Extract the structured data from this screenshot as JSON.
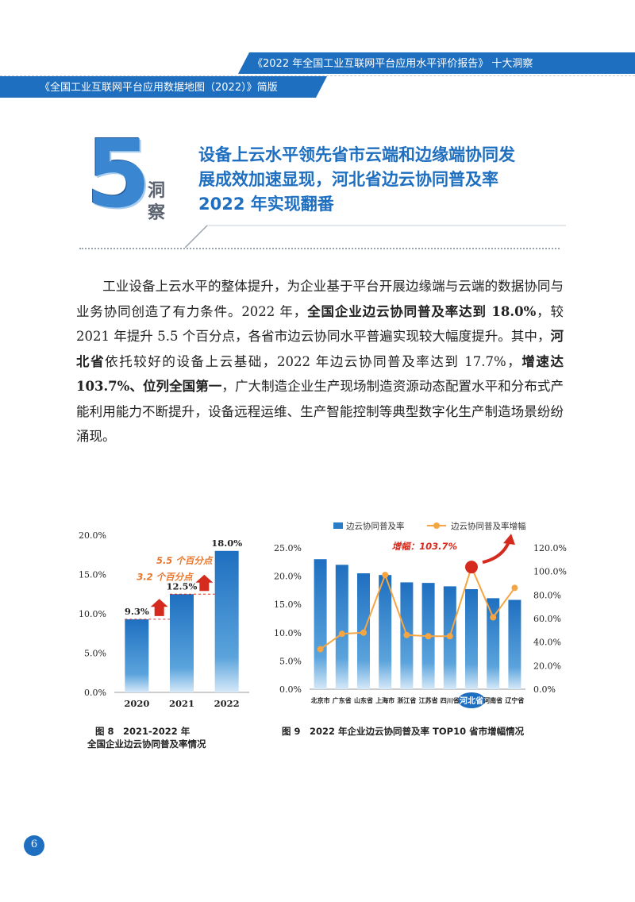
{
  "header": {
    "top_title": "《2022 年全国工业互联网平台应用水平评价报告》 十大洞察",
    "bottom_title": "《全国工业互联网平台应用数据地图（2022）》简版"
  },
  "insight": {
    "number": "5",
    "char1": "洞",
    "char2": "察",
    "title_lines": [
      "设备上云水平领先省市云端和边缘端协同发",
      "展成效加速显现，河北省边云协同普及率",
      "2022 年实现翻番"
    ]
  },
  "body": [
    {
      "t": "　　工业设备上云水平的整体提升，为企业基于平台开展边缘端与云端的数据协同与业务协同创造了有力条件。2022 年，",
      "b": false
    },
    {
      "t": "全国企业边云协同普及率达到 18.0%",
      "b": true
    },
    {
      "t": "，较 2021 年提升 5.5 个百分点，各省市边云协同水平普遍实现较大幅度提升。其中，",
      "b": false
    },
    {
      "t": "河北省",
      "b": true
    },
    {
      "t": "依托较好的设备上云基础，2022 年边云协同普及率达到 17.7%，",
      "b": false
    },
    {
      "t": "增速达 103.7%、位列全国第一",
      "b": true
    },
    {
      "t": "，广大制造企业生产现场制造资源动态配置水平和分布式产能利用能力不断提升，设备远程运维、生产智能控制等典型数字化生产制造场景纷纷涌现。",
      "b": false
    }
  ],
  "colors": {
    "brand_blue": "#1f6fc0",
    "bar_blue": "#2a7cc7",
    "line_orange": "#f5a642",
    "annotation_red": "#d52b1e",
    "annotation_orange": "#e8752a"
  },
  "figure8": {
    "caption_line1": "图 8　2021-2022 年",
    "caption_line2": "全国企业边云协同普及率情况",
    "annotations": [
      "5.5 个百分点",
      "3.2 个百分点"
    ]
  },
  "figure9": {
    "caption": "图 9　2022 年企业边云协同普及率 TOP10 省市增幅情况",
    "legend": [
      "边云协同普及率",
      "边云协同普及率增幅"
    ],
    "annotation": "增幅：103.7%",
    "highlight": "河北省"
  },
  "chart_data": [
    {
      "type": "bar",
      "categories": [
        "2020",
        "2021",
        "2022"
      ],
      "values": [
        9.3,
        12.5,
        18.0
      ],
      "value_labels": [
        "9.3%",
        "12.5%",
        "18.0%"
      ],
      "ylim": [
        0,
        20
      ],
      "yticks": [
        "0.0%",
        "5.0%",
        "10.0%",
        "15.0%",
        "20.0%"
      ],
      "grid": false
    },
    {
      "type": "bar",
      "categories": [
        "北京市",
        "广东省",
        "山东省",
        "上海市",
        "浙江省",
        "江苏省",
        "四川省",
        "河北省",
        "河南省",
        "辽宁省"
      ],
      "series": [
        {
          "name": "边云协同普及率",
          "type": "bar",
          "axis": "left",
          "values": [
            23.0,
            22.0,
            20.5,
            20.2,
            18.9,
            18.8,
            18.2,
            17.7,
            16.1,
            15.8
          ]
        },
        {
          "name": "边云协同普及率增幅",
          "type": "line",
          "axis": "right",
          "values": [
            34.0,
            47.0,
            48.0,
            97.0,
            46.0,
            45.0,
            45.0,
            103.7,
            61.0,
            86.0
          ]
        }
      ],
      "ylim_left": [
        0,
        25
      ],
      "yticks_left": [
        "0.0%",
        "5.0%",
        "10.0%",
        "15.0%",
        "20.0%",
        "25.0%"
      ],
      "ylim_right": [
        0,
        120
      ],
      "yticks_right": [
        "0.0%",
        "20.0%",
        "40.0%",
        "60.0%",
        "80.0%",
        "100.0%",
        "120.0%"
      ],
      "legend_position": "top",
      "grid": false
    }
  ],
  "page_number": "6"
}
